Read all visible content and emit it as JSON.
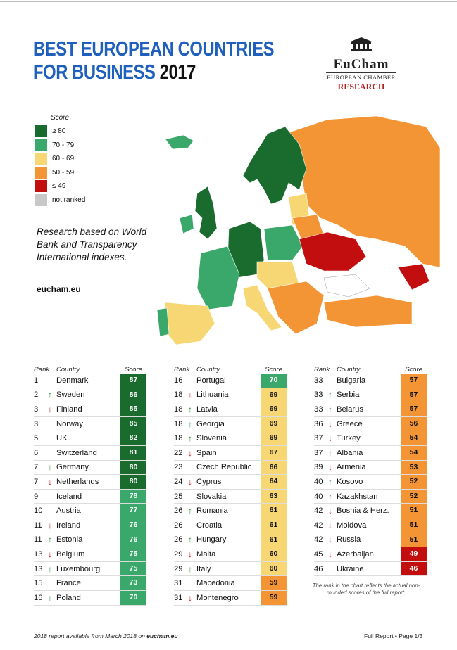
{
  "title": {
    "line1": "BEST EUROPEAN COUNTRIES",
    "line2_blue": "FOR BUSINESS",
    "line2_year": "2017"
  },
  "logo": {
    "name": "EuCham",
    "sub": "EUROPEAN CHAMBER",
    "research": "RESEARCH"
  },
  "legend": {
    "title": "Score",
    "items": [
      {
        "label": "≥ 80",
        "color": "#1a6b2e"
      },
      {
        "label": "70 - 79",
        "color": "#3aa86b"
      },
      {
        "label": "60 - 69",
        "color": "#f7d774"
      },
      {
        "label": "50 - 59",
        "color": "#f39435"
      },
      {
        "label": "≤ 49",
        "color": "#c20e0e"
      },
      {
        "label": "not ranked",
        "color": "#c8c8c8"
      }
    ]
  },
  "note": {
    "text": "Research based on World Bank and Transparency International indexes.",
    "site": "eucham.eu"
  },
  "table_headers": {
    "rank": "Rank",
    "country": "Country",
    "score": "Score"
  },
  "tables": [
    [
      [
        "1",
        "",
        "Denmark",
        "87"
      ],
      [
        "2",
        "up",
        "Sweden",
        "86"
      ],
      [
        "3",
        "down",
        "Finland",
        "85"
      ],
      [
        "3",
        "",
        "Norway",
        "85"
      ],
      [
        "5",
        "",
        "UK",
        "82"
      ],
      [
        "6",
        "",
        "Switzerland",
        "81"
      ],
      [
        "7",
        "up",
        "Germany",
        "80"
      ],
      [
        "7",
        "down",
        "Netherlands",
        "80"
      ],
      [
        "9",
        "",
        "Iceland",
        "78"
      ],
      [
        "10",
        "",
        "Austria",
        "77"
      ],
      [
        "11",
        "down",
        "Ireland",
        "76"
      ],
      [
        "11",
        "up",
        "Estonia",
        "76"
      ],
      [
        "13",
        "down",
        "Belgium",
        "75"
      ],
      [
        "13",
        "up",
        "Luxembourg",
        "75"
      ],
      [
        "15",
        "",
        "France",
        "73"
      ],
      [
        "16",
        "up",
        "Poland",
        "70"
      ]
    ],
    [
      [
        "16",
        "",
        "Portugal",
        "70"
      ],
      [
        "18",
        "down",
        "Lithuania",
        "69"
      ],
      [
        "18",
        "up",
        "Latvia",
        "69"
      ],
      [
        "18",
        "up",
        "Georgia",
        "69"
      ],
      [
        "18",
        "up",
        "Slovenia",
        "69"
      ],
      [
        "22",
        "down",
        "Spain",
        "67"
      ],
      [
        "23",
        "",
        "Czech Republic",
        "66"
      ],
      [
        "24",
        "down",
        "Cyprus",
        "64"
      ],
      [
        "25",
        "",
        "Slovakia",
        "63"
      ],
      [
        "26",
        "up",
        "Romania",
        "61"
      ],
      [
        "26",
        "",
        "Croatia",
        "61"
      ],
      [
        "26",
        "up",
        "Hungary",
        "61"
      ],
      [
        "29",
        "down",
        "Malta",
        "60"
      ],
      [
        "29",
        "up",
        "Italy",
        "60"
      ],
      [
        "31",
        "",
        "Macedonia",
        "59"
      ],
      [
        "31",
        "down",
        "Montenegro",
        "59"
      ]
    ],
    [
      [
        "33",
        "",
        "Bulgaria",
        "57"
      ],
      [
        "33",
        "up",
        "Serbia",
        "57"
      ],
      [
        "33",
        "up",
        "Belarus",
        "57"
      ],
      [
        "36",
        "down",
        "Greece",
        "56"
      ],
      [
        "37",
        "down",
        "Turkey",
        "54"
      ],
      [
        "37",
        "up",
        "Albania",
        "54"
      ],
      [
        "39",
        "down",
        "Armenia",
        "53"
      ],
      [
        "40",
        "up",
        "Kosovo",
        "52"
      ],
      [
        "40",
        "up",
        "Kazakhstan",
        "52"
      ],
      [
        "42",
        "down",
        "Bosnia & Herz.",
        "51"
      ],
      [
        "42",
        "down",
        "Moldova",
        "51"
      ],
      [
        "42",
        "down",
        "Russia",
        "51"
      ],
      [
        "45",
        "down",
        "Azerbaijan",
        "49"
      ],
      [
        "46",
        "",
        "Ukraine",
        "46"
      ]
    ]
  ],
  "arrows": {
    "up": "↑",
    "down": "↓"
  },
  "footnote": "The rank in the chart reflects the actual non-rounded scores of the full report.",
  "footer": {
    "left_prefix": "2018 report available from March 2018 on ",
    "left_site": "eucham.eu",
    "right": "Full Report  •  Page 1/3"
  }
}
